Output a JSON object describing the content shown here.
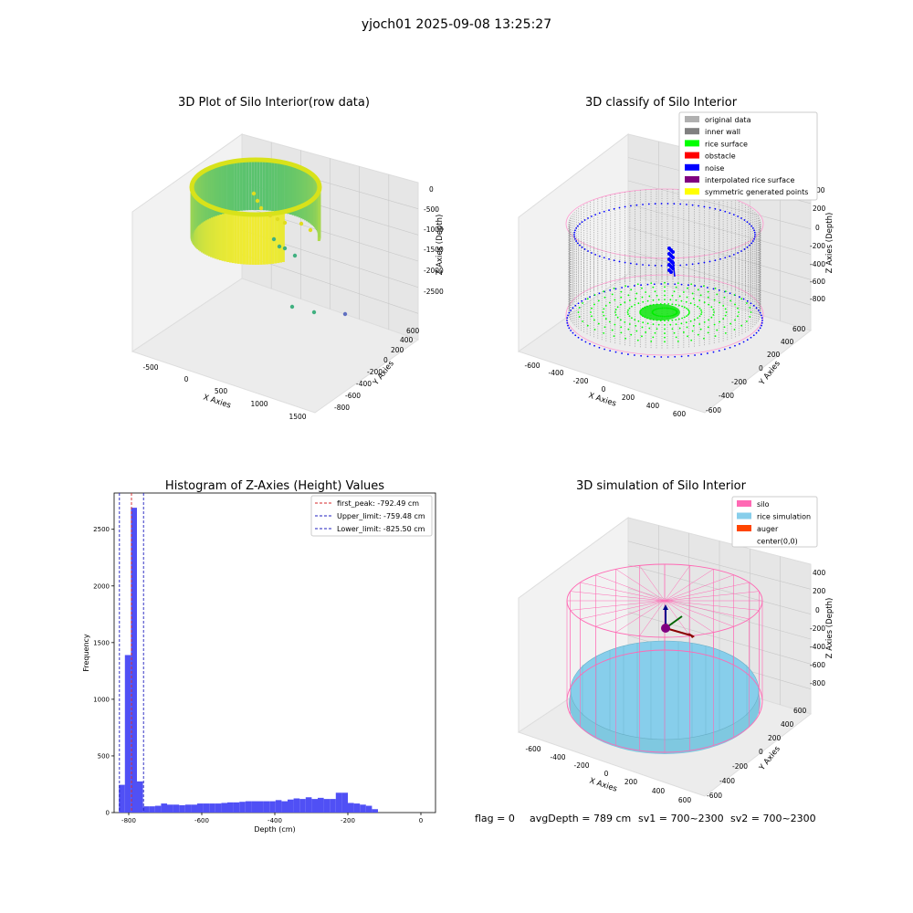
{
  "suptitle": "yjoch01 2025-09-08 13:25:27",
  "panel_titles": {
    "raw": "3D Plot of Silo Interior(row data)",
    "classify": "3D classify of Silo Interior",
    "hist": "Histogram of Z-Axies (Height) Values",
    "sim": "3D simulation of Silo Interior"
  },
  "axis_labels": {
    "x": "X Axies",
    "y": "Y Axies",
    "z": "Z Axies (Depth)",
    "hist_x": "Depth (cm)",
    "hist_y": "Frequency"
  },
  "status_line": {
    "flag": "flag = 0",
    "avg_depth": "avgDepth = 789 cm",
    "sv1": "sv1 = 700~2300",
    "sv2": "sv2 = 700~2300"
  },
  "colors": {
    "hist_bar": "#5050f5",
    "first_peak_line": "#d62728",
    "limit_line": "#1f1fbf",
    "silo": "#ff69b4",
    "rice_simulation": "#87ceeb",
    "auger": "#ff4500",
    "inner_wall": "#808080",
    "rice_surface": "#00ff00",
    "noise": "#0000ff"
  },
  "chart_data": [
    {
      "id": "raw",
      "type": "scatter3d",
      "title": "3D Plot of Silo Interior(row data)",
      "xlabel": "X Axies",
      "ylabel": "Y Axies",
      "zlabel": "Z Axies (Depth)",
      "x_ticks": [
        "-500",
        "0",
        "500",
        "1000",
        "1500"
      ],
      "y_ticks": [
        "600",
        "400",
        "200",
        "0",
        "-200",
        "-400",
        "-600",
        "-800"
      ],
      "z_ticks": [
        "0",
        "-500",
        "-1000",
        "-1500",
        "-2000",
        "-2500"
      ],
      "colormap": "viridis"
    },
    {
      "id": "classify",
      "type": "scatter3d",
      "title": "3D classify of Silo Interior",
      "xlabel": "X Axies",
      "ylabel": "Y Axies",
      "zlabel": "Z Axies (Depth)",
      "x_ticks": [
        "-600",
        "-400",
        "-200",
        "0",
        "200",
        "400",
        "600"
      ],
      "y_ticks": [
        "600",
        "400",
        "200",
        "0",
        "-200",
        "-400",
        "-600"
      ],
      "z_ticks": [
        "200",
        "0",
        "-200",
        "-400",
        "-600",
        "-800"
      ],
      "z_ticks_extra": [
        "00"
      ],
      "legend_position": "top-right",
      "legend": [
        {
          "label": "original data",
          "color": "#b0b0b0"
        },
        {
          "label": "inner wall",
          "color": "#808080"
        },
        {
          "label": "rice surface",
          "color": "#00ff00"
        },
        {
          "label": "obstacle",
          "color": "#ff0000"
        },
        {
          "label": "noise",
          "color": "#0000ff"
        },
        {
          "label": "interpolated rice surface",
          "color": "#800080"
        },
        {
          "label": "symmetric generated points",
          "color": "#ffff00"
        }
      ]
    },
    {
      "id": "hist",
      "type": "bar",
      "title": "Histogram of Z-Axies (Height) Values",
      "xlabel": "Depth (cm)",
      "ylabel": "Frequency",
      "xlim": [
        -840,
        40
      ],
      "ylim": [
        0,
        2820
      ],
      "x_ticks": [
        -800,
        -600,
        -400,
        -200,
        0
      ],
      "y_ticks": [
        0,
        500,
        1000,
        1500,
        2000,
        2500
      ],
      "bin_start": -827,
      "bin_width": 16.5,
      "counts": [
        245,
        1390,
        2690,
        275,
        55,
        55,
        60,
        80,
        70,
        70,
        65,
        70,
        70,
        80,
        80,
        80,
        80,
        85,
        90,
        90,
        95,
        100,
        100,
        100,
        100,
        100,
        110,
        100,
        115,
        125,
        120,
        135,
        120,
        130,
        120,
        120,
        175,
        175,
        85,
        80,
        70,
        60,
        30
      ],
      "vlines": [
        {
          "label": "first_peak: -792.49 cm",
          "x": -792.49,
          "color": "#d62728"
        },
        {
          "label": "Upper_limit: -759.48 cm",
          "x": -759.48,
          "color": "#1f1fbf"
        },
        {
          "label": "Lower_limit: -825.50 cm",
          "x": -825.5,
          "color": "#1f1fbf"
        }
      ],
      "legend_position": "top-right"
    },
    {
      "id": "sim",
      "type": "surface3d",
      "title": "3D simulation of Silo Interior",
      "xlabel": "X Axies",
      "ylabel": "Y Axies",
      "zlabel": "Z Axies (Depth)",
      "x_ticks": [
        "-600",
        "-400",
        "-200",
        "0",
        "200",
        "400",
        "600"
      ],
      "y_ticks": [
        "600",
        "400",
        "200",
        "0",
        "-200",
        "-400",
        "-600"
      ],
      "z_ticks": [
        "400",
        "200",
        "0",
        "-200",
        "-400",
        "-600",
        "-800"
      ],
      "legend_position": "top-right",
      "legend": [
        {
          "label": "silo",
          "color": "#ff69b4"
        },
        {
          "label": "rice simulation",
          "color": "#87ceeb"
        },
        {
          "label": "auger",
          "color": "#ff4500"
        },
        {
          "label": "center(0,0)",
          "color": ""
        }
      ]
    }
  ]
}
